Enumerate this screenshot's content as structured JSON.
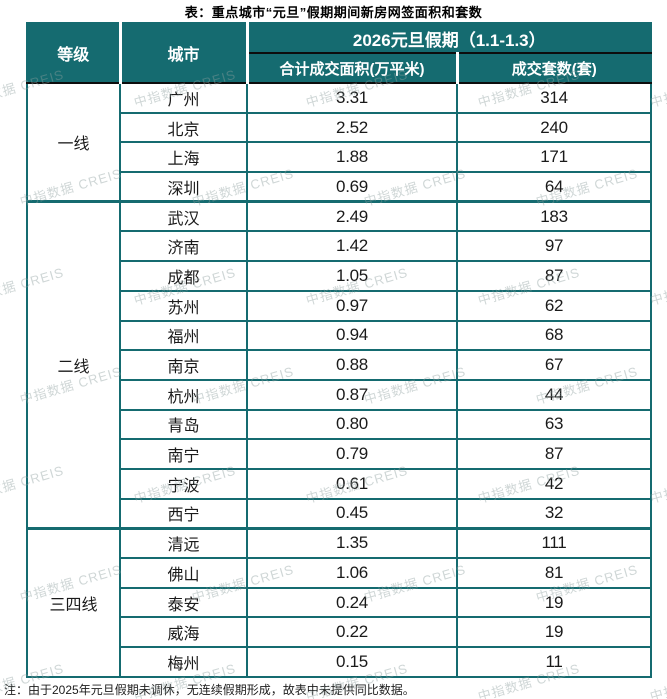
{
  "title": "表：重点城市“元旦”假期期间新房网签面积和套数",
  "note": "注：由于2025年元旦假期未调休，无连续假期形成，故表中未提供同比数据。",
  "watermark_text": "中指数据 CREIS",
  "colors": {
    "header_teal": "#156b70",
    "separator_dark": "#0d0d0d",
    "header_text": "#ffffff",
    "body_text": "#1a1a1a"
  },
  "table": {
    "col_tier": "等级",
    "col_city": "城市",
    "span_header": "2026元旦假期（1.1-1.3）",
    "col_area": "合计成交面积(万平米)",
    "col_units": "成交套数(套)",
    "groups": [
      {
        "tier": "一线",
        "rows": [
          {
            "city": "广州",
            "area": "3.31",
            "units": "314"
          },
          {
            "city": "北京",
            "area": "2.52",
            "units": "240"
          },
          {
            "city": "上海",
            "area": "1.88",
            "units": "171"
          },
          {
            "city": "深圳",
            "area": "0.69",
            "units": "64"
          }
        ]
      },
      {
        "tier": "二线",
        "rows": [
          {
            "city": "武汉",
            "area": "2.49",
            "units": "183"
          },
          {
            "city": "济南",
            "area": "1.42",
            "units": "97"
          },
          {
            "city": "成都",
            "area": "1.05",
            "units": "87"
          },
          {
            "city": "苏州",
            "area": "0.97",
            "units": "62"
          },
          {
            "city": "福州",
            "area": "0.94",
            "units": "68"
          },
          {
            "city": "南京",
            "area": "0.88",
            "units": "67"
          },
          {
            "city": "杭州",
            "area": "0.87",
            "units": "44"
          },
          {
            "city": "青岛",
            "area": "0.80",
            "units": "63"
          },
          {
            "city": "南宁",
            "area": "0.79",
            "units": "87"
          },
          {
            "city": "宁波",
            "area": "0.61",
            "units": "42"
          },
          {
            "city": "西宁",
            "area": "0.45",
            "units": "32"
          }
        ]
      },
      {
        "tier": "三四线",
        "rows": [
          {
            "city": "清远",
            "area": "1.35",
            "units": "111"
          },
          {
            "city": "佛山",
            "area": "1.06",
            "units": "81"
          },
          {
            "city": "泰安",
            "area": "0.24",
            "units": "19"
          },
          {
            "city": "威海",
            "area": "0.22",
            "units": "19"
          },
          {
            "city": "梅州",
            "area": "0.15",
            "units": "11"
          }
        ]
      }
    ]
  },
  "chart_data": {
    "type": "table",
    "title": "表：重点城市“元旦”假期期间新房网签面积和套数",
    "span_header": "2026元旦假期（1.1-1.3）",
    "columns": [
      "等级",
      "城市",
      "合计成交面积(万平米)",
      "成交套数(套)"
    ],
    "rows": [
      [
        "一线",
        "广州",
        3.31,
        314
      ],
      [
        "一线",
        "北京",
        2.52,
        240
      ],
      [
        "一线",
        "上海",
        1.88,
        171
      ],
      [
        "一线",
        "深圳",
        0.69,
        64
      ],
      [
        "二线",
        "武汉",
        2.49,
        183
      ],
      [
        "二线",
        "济南",
        1.42,
        97
      ],
      [
        "二线",
        "成都",
        1.05,
        87
      ],
      [
        "二线",
        "苏州",
        0.97,
        62
      ],
      [
        "二线",
        "福州",
        0.94,
        68
      ],
      [
        "二线",
        "南京",
        0.88,
        67
      ],
      [
        "二线",
        "杭州",
        0.87,
        44
      ],
      [
        "二线",
        "青岛",
        0.8,
        63
      ],
      [
        "二线",
        "南宁",
        0.79,
        87
      ],
      [
        "二线",
        "宁波",
        0.61,
        42
      ],
      [
        "二线",
        "西宁",
        0.45,
        32
      ],
      [
        "三四线",
        "清远",
        1.35,
        111
      ],
      [
        "三四线",
        "佛山",
        1.06,
        81
      ],
      [
        "三四线",
        "泰安",
        0.24,
        19
      ],
      [
        "三四线",
        "威海",
        0.22,
        19
      ],
      [
        "三四线",
        "梅州",
        0.15,
        11
      ]
    ],
    "note": "注：由于2025年元旦假期未调休，无连续假期形成，故表中未提供同比数据。"
  }
}
